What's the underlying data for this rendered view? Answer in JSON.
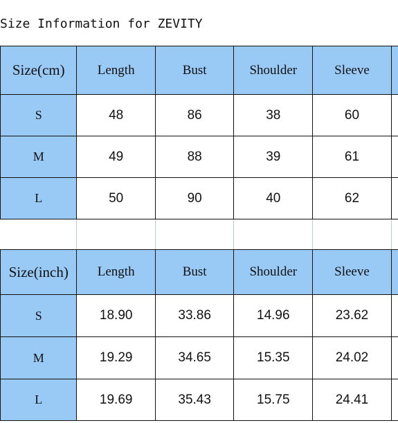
{
  "title": "Size Information for ZEVITY",
  "colors": {
    "header_blue": "#99c9f5",
    "border": "#111111"
  },
  "table_cm": {
    "columns": [
      "Size(cm)",
      "Length",
      "Bust",
      "Shoulder",
      "Sleeve"
    ],
    "rows": [
      [
        "S",
        "48",
        "86",
        "38",
        "60"
      ],
      [
        "M",
        "49",
        "88",
        "39",
        "61"
      ],
      [
        "L",
        "50",
        "90",
        "40",
        "62"
      ]
    ]
  },
  "table_inch": {
    "columns": [
      "Size(inch)",
      "Length",
      "Bust",
      "Shoulder",
      "Sleeve"
    ],
    "rows": [
      [
        "S",
        "18.90",
        "33.86",
        "14.96",
        "23.62"
      ],
      [
        "M",
        "19.29",
        "34.65",
        "15.35",
        "24.02"
      ],
      [
        "L",
        "19.69",
        "35.43",
        "15.75",
        "24.41"
      ]
    ]
  }
}
